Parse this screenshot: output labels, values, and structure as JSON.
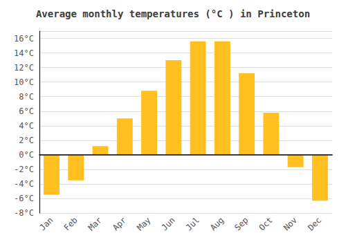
{
  "chart_data": {
    "type": "bar",
    "title": "Average monthly temperatures (°C ) in Princeton",
    "categories": [
      "Jan",
      "Feb",
      "Mar",
      "Apr",
      "May",
      "Jun",
      "Jul",
      "Aug",
      "Sep",
      "Oct",
      "Nov",
      "Dec"
    ],
    "values": [
      -5.5,
      -3.5,
      1.2,
      5.0,
      8.8,
      13.0,
      15.6,
      15.6,
      11.2,
      5.8,
      -1.7,
      -6.3
    ],
    "color": "#FFC020",
    "ylim": [
      -8,
      17
    ],
    "yticks": [
      {
        "value": -8,
        "label": "-8°C"
      },
      {
        "value": -6,
        "label": "-6°C"
      },
      {
        "value": -4,
        "label": "-4°C"
      },
      {
        "value": -2,
        "label": "-2°C"
      },
      {
        "value": 0,
        "label": "0°C"
      },
      {
        "value": 2,
        "label": "2°C"
      },
      {
        "value": 4,
        "label": "4°C"
      },
      {
        "value": 6,
        "label": "6°C"
      },
      {
        "value": 8,
        "label": "8°C"
      },
      {
        "value": 10,
        "label": "10°C"
      },
      {
        "value": 12,
        "label": "12°C"
      },
      {
        "value": 14,
        "label": "14°C"
      },
      {
        "value": 16,
        "label": "16°C"
      }
    ],
    "grid": true
  }
}
